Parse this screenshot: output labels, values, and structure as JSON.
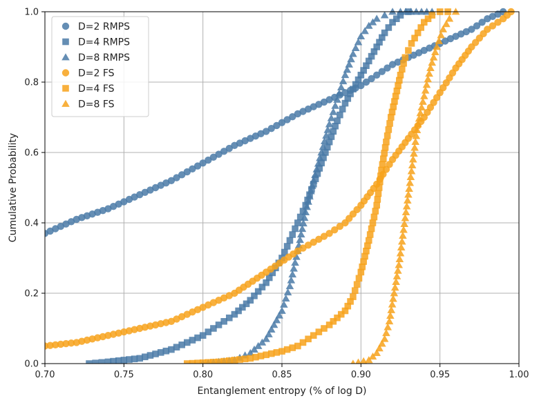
{
  "chart_data": {
    "type": "scatter",
    "title": "",
    "xlabel": "Entanglement entropy (% of log D)",
    "ylabel": "Cumulative Probability",
    "xlim": [
      0.7,
      1.0
    ],
    "ylim": [
      0.0,
      1.0
    ],
    "xticks": [
      0.7,
      0.75,
      0.8,
      0.85,
      0.9,
      0.95,
      1.0
    ],
    "xtick_labels": [
      "0.70",
      "0.75",
      "0.80",
      "0.85",
      "0.90",
      "0.95",
      "1.00"
    ],
    "yticks": [
      0.0,
      0.2,
      0.4,
      0.6,
      0.8,
      1.0
    ],
    "ytick_labels": [
      "0.0",
      "0.2",
      "0.4",
      "0.6",
      "0.8",
      "1.0"
    ],
    "grid": true,
    "legend_position": "top-left",
    "series": [
      {
        "name": "D=2 RMPS",
        "color": "#4a7aa7",
        "marker": "circle",
        "x": [
          0.7,
          0.72,
          0.74,
          0.76,
          0.78,
          0.8,
          0.82,
          0.84,
          0.86,
          0.88,
          0.89,
          0.9,
          0.91,
          0.92,
          0.93,
          0.94,
          0.95,
          0.96,
          0.97,
          0.98,
          0.99
        ],
        "y": [
          0.37,
          0.41,
          0.44,
          0.48,
          0.52,
          0.57,
          0.62,
          0.66,
          0.71,
          0.75,
          0.77,
          0.79,
          0.82,
          0.85,
          0.87,
          0.89,
          0.91,
          0.93,
          0.95,
          0.98,
          1.0
        ]
      },
      {
        "name": "D=4 RMPS",
        "color": "#4a7aa7",
        "marker": "square",
        "x": [
          0.728,
          0.74,
          0.76,
          0.78,
          0.8,
          0.81,
          0.82,
          0.83,
          0.84,
          0.85,
          0.855,
          0.86,
          0.865,
          0.87,
          0.875,
          0.88,
          0.885,
          0.89,
          0.895,
          0.9,
          0.905,
          0.91,
          0.915,
          0.92,
          0.925,
          0.93
        ],
        "y": [
          0.0,
          0.005,
          0.015,
          0.04,
          0.08,
          0.11,
          0.14,
          0.18,
          0.23,
          0.3,
          0.35,
          0.4,
          0.45,
          0.51,
          0.57,
          0.63,
          0.69,
          0.74,
          0.78,
          0.82,
          0.86,
          0.9,
          0.94,
          0.97,
          0.99,
          1.0
        ]
      },
      {
        "name": "D=8 RMPS",
        "color": "#4a7aa7",
        "marker": "triangle",
        "x": [
          0.8,
          0.82,
          0.83,
          0.84,
          0.85,
          0.855,
          0.86,
          0.865,
          0.87,
          0.875,
          0.88,
          0.885,
          0.89,
          0.895,
          0.9,
          0.905,
          0.91,
          0.915,
          0.92,
          0.925,
          0.935,
          0.945
        ],
        "y": [
          0.0,
          0.01,
          0.03,
          0.07,
          0.15,
          0.22,
          0.32,
          0.43,
          0.52,
          0.6,
          0.68,
          0.75,
          0.82,
          0.88,
          0.93,
          0.96,
          0.98,
          0.99,
          1.0,
          1.0,
          1.0,
          1.0
        ]
      },
      {
        "name": "D=2 FS",
        "color": "#f7a21b",
        "marker": "circle",
        "x": [
          0.7,
          0.72,
          0.74,
          0.76,
          0.78,
          0.8,
          0.82,
          0.84,
          0.86,
          0.88,
          0.89,
          0.9,
          0.91,
          0.92,
          0.93,
          0.94,
          0.95,
          0.96,
          0.97,
          0.98,
          0.99,
          0.995
        ],
        "y": [
          0.05,
          0.06,
          0.08,
          0.1,
          0.12,
          0.16,
          0.2,
          0.26,
          0.32,
          0.37,
          0.4,
          0.45,
          0.51,
          0.58,
          0.64,
          0.7,
          0.77,
          0.84,
          0.9,
          0.95,
          0.98,
          1.0
        ]
      },
      {
        "name": "D=4 FS",
        "color": "#f7a21b",
        "marker": "square",
        "x": [
          0.79,
          0.81,
          0.83,
          0.85,
          0.86,
          0.87,
          0.88,
          0.89,
          0.895,
          0.9,
          0.905,
          0.91,
          0.913,
          0.916,
          0.919,
          0.922,
          0.925,
          0.928,
          0.932,
          0.936,
          0.94,
          0.945,
          0.95,
          0.955
        ],
        "y": [
          0.0,
          0.005,
          0.015,
          0.035,
          0.05,
          0.08,
          0.11,
          0.15,
          0.19,
          0.26,
          0.35,
          0.45,
          0.55,
          0.63,
          0.7,
          0.76,
          0.82,
          0.87,
          0.91,
          0.94,
          0.97,
          0.99,
          1.0,
          1.0
        ]
      },
      {
        "name": "D=8 FS",
        "color": "#f7a21b",
        "marker": "triangle",
        "x": [
          0.895,
          0.905,
          0.91,
          0.915,
          0.918,
          0.921,
          0.924,
          0.927,
          0.93,
          0.933,
          0.936,
          0.94,
          0.944,
          0.948,
          0.952,
          0.956,
          0.96
        ],
        "y": [
          0.0,
          0.01,
          0.03,
          0.07,
          0.12,
          0.2,
          0.28,
          0.38,
          0.48,
          0.58,
          0.68,
          0.76,
          0.84,
          0.9,
          0.95,
          0.98,
          1.0
        ]
      }
    ]
  }
}
